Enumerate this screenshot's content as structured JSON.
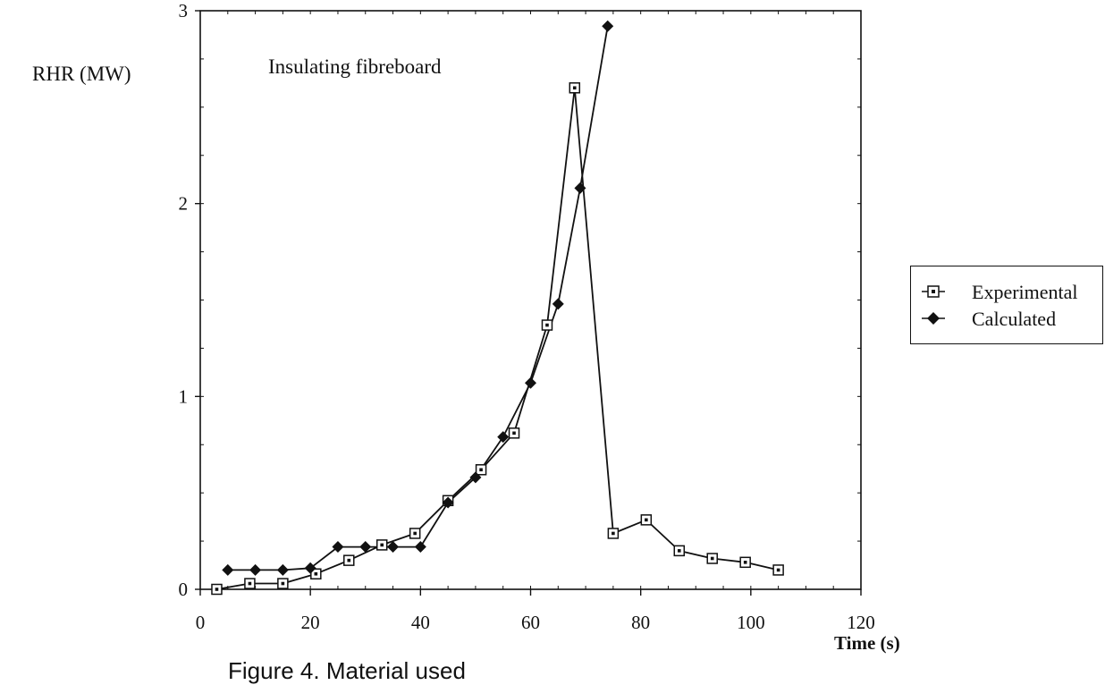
{
  "chart_data": {
    "type": "line",
    "annotation": "Insulating fibreboard",
    "ylabel": "RHR (MW)",
    "xlabel": "Time (s)",
    "caption": "Figure 4. Material used",
    "xlim": [
      0,
      120
    ],
    "ylim": [
      0,
      3
    ],
    "xticks": [
      0,
      20,
      40,
      60,
      80,
      100,
      120
    ],
    "yticks": [
      0,
      1,
      2,
      3
    ],
    "xtick_labels": [
      "0",
      "20",
      "40",
      "60",
      "80",
      "100",
      "120"
    ],
    "ytick_labels": [
      "0",
      "1",
      "2",
      "3"
    ],
    "legend_position": "right",
    "series": [
      {
        "name": "Experimental",
        "marker": "open-square",
        "x": [
          3,
          9,
          15,
          21,
          27,
          33,
          39,
          45,
          51,
          57,
          63,
          68,
          75,
          81,
          87,
          93,
          99,
          105
        ],
        "y": [
          0.0,
          0.03,
          0.03,
          0.08,
          0.15,
          0.23,
          0.29,
          0.46,
          0.62,
          0.81,
          1.37,
          2.6,
          0.29,
          0.36,
          0.2,
          0.16,
          0.14,
          0.1
        ]
      },
      {
        "name": "Calculated",
        "marker": "filled-diamond",
        "x": [
          5,
          10,
          15,
          20,
          25,
          30,
          35,
          40,
          45,
          50,
          55,
          60,
          65,
          69,
          74
        ],
        "y": [
          0.1,
          0.1,
          0.1,
          0.11,
          0.22,
          0.22,
          0.22,
          0.22,
          0.45,
          0.58,
          0.79,
          1.07,
          1.48,
          2.08,
          2.92
        ]
      }
    ]
  }
}
